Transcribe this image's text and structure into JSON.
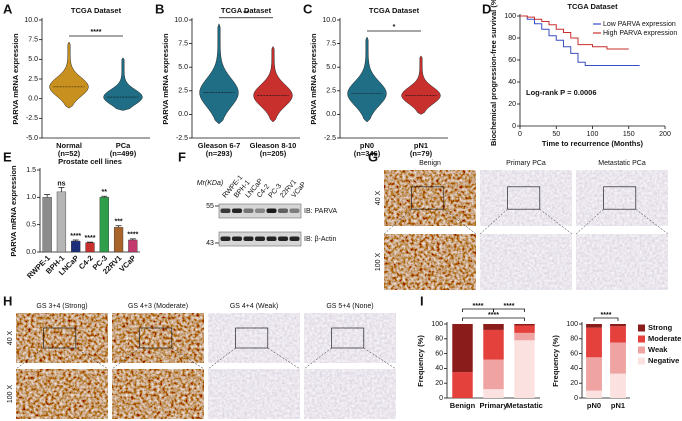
{
  "panel_letters": [
    "A",
    "B",
    "C",
    "D",
    "E",
    "F",
    "G",
    "H",
    "I"
  ],
  "chart_data": [
    {
      "type": "violin",
      "title": "TCGA Dataset",
      "ylabel": "PARVA mRNA expression",
      "categories": [
        "Normal",
        "PCa"
      ],
      "category_notes": [
        "(n=52)",
        "(n=499)"
      ],
      "colors": [
        "#c8901e",
        "#1f6e86"
      ],
      "medians": [
        1.5,
        0.2
      ],
      "mins": [
        -1.2,
        -1.5
      ],
      "maxs": [
        7.2,
        5.2
      ],
      "ylim": [
        -5,
        10
      ],
      "yticks": [
        {
          "value": -5,
          "label": "-5.0"
        },
        {
          "value": -2.5,
          "label": "-2.5"
        },
        {
          "value": 0,
          "label": "0.0"
        },
        {
          "value": 2.5,
          "label": "2.5"
        },
        {
          "value": 5,
          "label": "5.0"
        },
        {
          "value": 7.5,
          "label": "7.5"
        },
        {
          "value": 10,
          "label": "10.0"
        }
      ],
      "significance": "****"
    },
    {
      "type": "violin",
      "title": "TCGA Dataset",
      "ylabel": "PARVA mRNA expression",
      "categories": [
        "Gleason 6-7",
        "Gleason 8-10"
      ],
      "category_notes": [
        "(n=293)",
        "(n=205)"
      ],
      "colors": [
        "#1f6e86",
        "#c8302e"
      ],
      "medians": [
        2.3,
        2.0
      ],
      "mins": [
        -1.0,
        -0.8
      ],
      "maxs": [
        9.6,
        7.2
      ],
      "ylim": [
        -2.5,
        10
      ],
      "yticks": [
        {
          "value": -2.5,
          "label": "-2.5"
        },
        {
          "value": 0,
          "label": "0.0"
        },
        {
          "value": 2.5,
          "label": "2.5"
        },
        {
          "value": 5,
          "label": "5.0"
        },
        {
          "value": 7.5,
          "label": "7.5"
        },
        {
          "value": 10,
          "label": "10.0"
        }
      ],
      "significance": "**"
    },
    {
      "type": "violin",
      "title": "TCGA Dataset",
      "ylabel": "PARVA mRNA expression",
      "categories": [
        "pN0",
        "pN1"
      ],
      "category_notes": [
        "(n=346)",
        "(n=79)"
      ],
      "colors": [
        "#1f6e86",
        "#c8302e"
      ],
      "medians": [
        2.2,
        2.0
      ],
      "mins": [
        -0.8,
        0.0
      ],
      "maxs": [
        8.2,
        6.2
      ],
      "ylim": [
        -2.5,
        10
      ],
      "yticks": [
        {
          "value": -2.5,
          "label": "-2.5"
        },
        {
          "value": 0,
          "label": "0.0"
        },
        {
          "value": 2.5,
          "label": "2.5"
        },
        {
          "value": 5,
          "label": "5.0"
        },
        {
          "value": 7.5,
          "label": "7.5"
        },
        {
          "value": 10,
          "label": "10.0"
        }
      ],
      "significance": "*"
    },
    {
      "type": "line",
      "title": "TCGA Dataset",
      "ylabel": "Biochemical progression-free survival (%)",
      "xlabel": "Time to recurrence (Months)",
      "annotation": "Log-rank P = 0.0006",
      "series": [
        {
          "name": "Low PARVA expression",
          "color": "#3a4fc4",
          "x": [
            0,
            10,
            20,
            30,
            40,
            50,
            60,
            70,
            80,
            90,
            120,
            165
          ],
          "values": [
            100,
            97,
            93,
            88,
            82,
            78,
            72,
            66,
            58,
            55,
            55,
            55
          ]
        },
        {
          "name": "High PARVA expression",
          "color": "#c8302e",
          "x": [
            0,
            10,
            20,
            30,
            40,
            50,
            60,
            70,
            80,
            100,
            120,
            150
          ],
          "values": [
            100,
            99,
            97,
            95,
            92,
            88,
            85,
            80,
            74,
            72,
            70,
            70
          ]
        }
      ],
      "xlim": [
        0,
        200
      ],
      "xticks": [
        0,
        50,
        100,
        150,
        200
      ],
      "ylim": [
        0,
        100
      ],
      "yticks": [
        0,
        20,
        40,
        60,
        80,
        100
      ]
    },
    {
      "type": "bar",
      "title": "Prostate cell lines",
      "ylabel": "PARVA mRNA expression",
      "categories": [
        "RWPE-1",
        "BPH-1",
        "LNCaP",
        "C4-2",
        "PC-3",
        "22RV1",
        "VCaP"
      ],
      "values": [
        1.0,
        1.1,
        0.2,
        0.17,
        1.0,
        0.45,
        0.22
      ],
      "errors": [
        0.05,
        0.08,
        0.02,
        0.01,
        0.02,
        0.03,
        0.02
      ],
      "colors": [
        "#8c8c8c",
        "#b5b5b5",
        "#1c2f7a",
        "#c8302e",
        "#2e9e4a",
        "#a8642a",
        "#c23a6e"
      ],
      "annotations": [
        null,
        "ns",
        "****",
        "****",
        "**",
        "***",
        "****"
      ],
      "ylim": [
        0,
        1.5
      ],
      "yticks": [
        {
          "value": 0,
          "label": "0.0"
        },
        {
          "value": 0.5,
          "label": "0.5"
        },
        {
          "value": 1,
          "label": "1.0"
        },
        {
          "value": 1.5,
          "label": "1.5"
        }
      ]
    },
    {
      "type": "stacked_bar",
      "ylabel": "Frequency (%)",
      "categories": [
        "Benign",
        "Primary",
        "Metastatic"
      ],
      "series": [
        {
          "name": "Strong",
          "color": "#8b1c1c",
          "values": [
            65,
            8,
            2
          ]
        },
        {
          "name": "Moderate",
          "color": "#e4403c",
          "values": [
            35,
            40,
            10
          ]
        },
        {
          "name": "Weak",
          "color": "#f0a3a3",
          "values": [
            0,
            40,
            10
          ]
        },
        {
          "name": "Negative",
          "color": "#fbe1e0",
          "values": [
            0,
            12,
            78
          ]
        }
      ],
      "significance": [
        "****",
        "****",
        "****"
      ],
      "ylim": [
        0,
        100
      ],
      "yticks": [
        0,
        20,
        40,
        60,
        80,
        100
      ]
    },
    {
      "type": "stacked_bar",
      "ylabel": "Frequency (%)",
      "categories": [
        "pN0",
        "pN1"
      ],
      "series": [
        {
          "name": "Strong",
          "color": "#8b1c1c",
          "values": [
            5,
            3
          ]
        },
        {
          "name": "Moderate",
          "color": "#e4403c",
          "values": [
            40,
            22
          ]
        },
        {
          "name": "Weak",
          "color": "#f0a3a3",
          "values": [
            45,
            42
          ]
        },
        {
          "name": "Negative",
          "color": "#fbe1e0",
          "values": [
            10,
            33
          ]
        }
      ],
      "significance": [
        "****"
      ],
      "legend": "right",
      "ylim": [
        0,
        100
      ],
      "yticks": [
        0,
        20,
        40,
        60,
        80,
        100
      ]
    }
  ],
  "western_blot": {
    "mw_label": "Mr(KDa)",
    "markers": [
      "55",
      "43"
    ],
    "lanes": [
      "RWPE-1",
      "BPH-1",
      "LNCaP",
      "C4-2",
      "PC-3",
      "22RV1",
      "VCaP"
    ],
    "blots": [
      "IB: PARVA",
      "IB: β-Actin"
    ]
  },
  "ihc_g": {
    "columns": [
      "Benign",
      "Primary PCa",
      "Metastatic PCa"
    ],
    "rows": [
      "40 X",
      "100 X"
    ]
  },
  "ihc_h": {
    "columns": [
      "GS 3+4 (Strong)",
      "GS 4+3 (Moderate)",
      "GS 4+4 (Weak)",
      "GS 5+4 (None)"
    ],
    "rows": [
      "40 X",
      "100 X"
    ]
  }
}
